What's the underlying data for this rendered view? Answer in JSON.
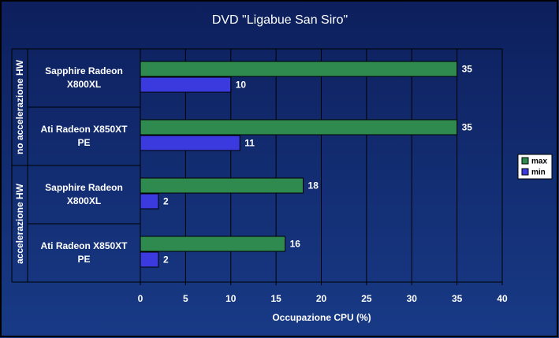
{
  "chart_data": {
    "type": "bar",
    "orientation": "horizontal",
    "title": "DVD \"Ligabue San Siro\"",
    "x_label": "Occupazione CPU (%)",
    "groups": [
      {
        "name": "no accelerazione HW",
        "categories": [
          "Sapphire Radeon\nX800XL",
          "Ati Radeon X850XT\nPE"
        ]
      },
      {
        "name": "accelerazione HW",
        "categories": [
          "Sapphire Radeon\nX800XL",
          "Ati Radeon X850XT\nPE"
        ]
      }
    ],
    "series": [
      {
        "name": "max",
        "color": "#2e8a4e",
        "values": [
          35,
          35,
          18,
          16
        ]
      },
      {
        "name": "min",
        "color": "#3a3adf",
        "values": [
          10,
          11,
          2,
          2
        ]
      }
    ],
    "xlim": [
      0,
      40
    ],
    "xticks": [
      0,
      5,
      10,
      15,
      20,
      25,
      30,
      35,
      40
    ],
    "grid": true,
    "legend": "right"
  }
}
